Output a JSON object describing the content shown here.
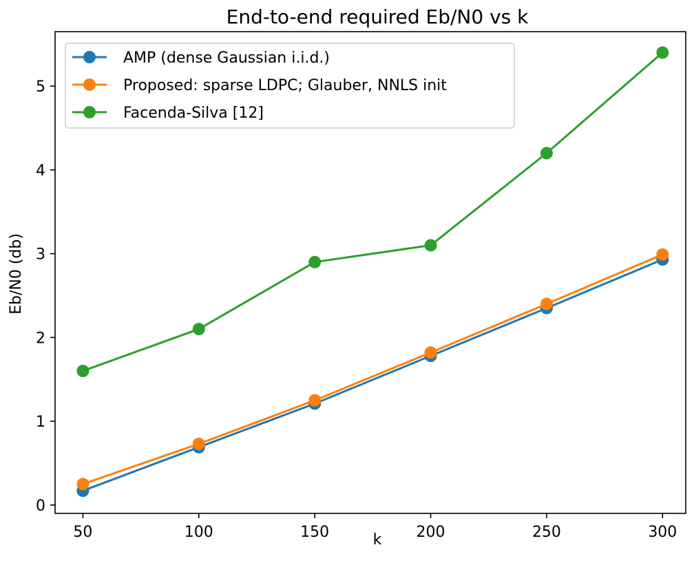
{
  "chart_data": {
    "type": "line",
    "title": "End-to-end required Eb/N0 vs k",
    "xlabel": "k",
    "ylabel": "Eb/N0 (db)",
    "x": [
      50,
      100,
      150,
      200,
      250,
      300
    ],
    "xlim": [
      38,
      310
    ],
    "ylim": [
      -0.1,
      5.65
    ],
    "xticks": [
      50,
      100,
      150,
      200,
      250,
      300
    ],
    "yticks": [
      0,
      1,
      2,
      3,
      4,
      5
    ],
    "grid": false,
    "legend_position": "top-left",
    "series": [
      {
        "name": "AMP (dense Gaussian i.i.d.)",
        "color": "#1f77b4",
        "values": [
          0.17,
          0.69,
          1.21,
          1.78,
          2.35,
          2.93
        ]
      },
      {
        "name": "Proposed: sparse LDPC; Glauber, NNLS init",
        "color": "#ff7f0e",
        "values": [
          0.25,
          0.73,
          1.25,
          1.82,
          2.4,
          2.99
        ]
      },
      {
        "name": "Facenda-Silva [12]",
        "color": "#2ca02c",
        "values": [
          1.6,
          2.1,
          2.9,
          3.1,
          4.2,
          5.4
        ]
      }
    ]
  }
}
